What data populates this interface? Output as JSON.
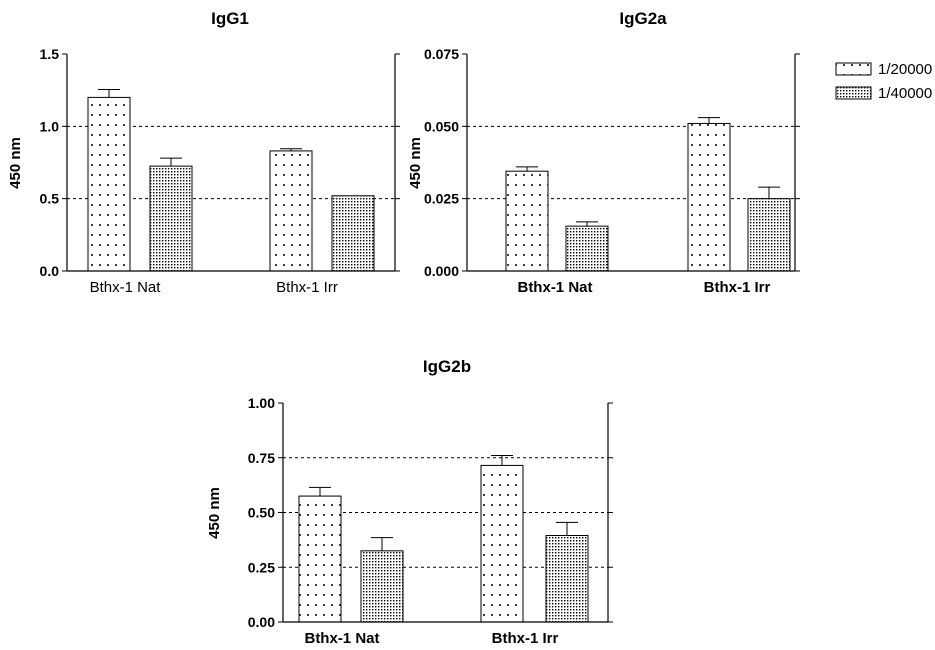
{
  "chart_data": [
    {
      "type": "bar",
      "title": "IgG1",
      "ylabel": "450 nm",
      "categories": [
        "Bthx-1 Nat",
        "Bthx-1 Irr"
      ],
      "yticks": [
        "0.0",
        "0.5",
        "1.0",
        "1.5"
      ],
      "ylim": [
        0,
        1.5
      ],
      "grid_values": [
        0.5,
        1.0
      ],
      "series": [
        {
          "name": "1/20000",
          "values": [
            1.2,
            0.83
          ],
          "errors": [
            0.055,
            0.015
          ]
        },
        {
          "name": "1/40000",
          "values": [
            0.725,
            0.52
          ],
          "errors": [
            0.055,
            0.0
          ]
        }
      ]
    },
    {
      "type": "bar",
      "title": "IgG2a",
      "ylabel": "450 nm",
      "categories": [
        "Bthx-1 Nat",
        "Bthx-1 Irr"
      ],
      "yticks": [
        "0.000",
        "0.025",
        "0.050",
        "0.075"
      ],
      "ylim": [
        0,
        0.075
      ],
      "grid_values": [
        0.025,
        0.05
      ],
      "series": [
        {
          "name": "1/20000",
          "values": [
            0.0345,
            0.051
          ],
          "errors": [
            0.0015,
            0.002
          ]
        },
        {
          "name": "1/40000",
          "values": [
            0.0155,
            0.025
          ],
          "errors": [
            0.0015,
            0.004
          ]
        }
      ]
    },
    {
      "type": "bar",
      "title": "IgG2b",
      "ylabel": "450 nm",
      "categories": [
        "Bthx-1 Nat",
        "Bthx-1 Irr"
      ],
      "yticks": [
        "0.00",
        "0.25",
        "0.50",
        "0.75",
        "1.00"
      ],
      "ylim": [
        0,
        1.0
      ],
      "grid_values": [
        0.25,
        0.5,
        0.75
      ],
      "series": [
        {
          "name": "1/20000",
          "values": [
            0.575,
            0.715
          ],
          "errors": [
            0.04,
            0.045
          ]
        },
        {
          "name": "1/40000",
          "values": [
            0.325,
            0.395
          ],
          "errors": [
            0.06,
            0.06
          ]
        }
      ]
    }
  ],
  "legend": [
    {
      "label": "1/20000",
      "pattern": "sparse-dots"
    },
    {
      "label": "1/40000",
      "pattern": "dense-dots"
    }
  ],
  "colors": {
    "bar_fill": "#ffffff",
    "stroke": "#000000",
    "grid": "#000000"
  }
}
